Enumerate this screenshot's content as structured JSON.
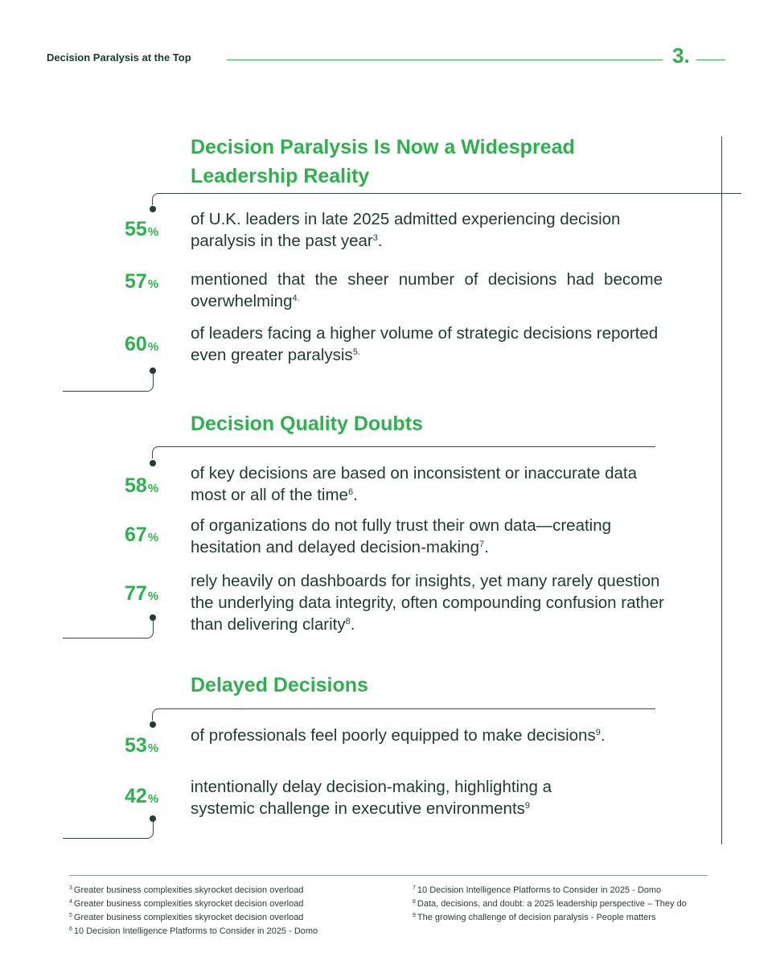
{
  "header": {
    "title": "Decision Paralysis at the Top",
    "page_number": "3."
  },
  "sections": [
    {
      "title": "Decision Paralysis Is Now a Widespread Leadership Reality",
      "stats": [
        {
          "value": "55",
          "unit": "%",
          "text": "of U.K. leaders in late 2025 admitted experiencing decision paralysis in the past year",
          "ref": "3",
          "tail": "."
        },
        {
          "value": "57",
          "unit": "%",
          "text": "mentioned that the sheer number of decisions had become overwhelming",
          "ref": "4.",
          "tail": ""
        },
        {
          "value": "60",
          "unit": "%",
          "text": "of leaders facing a higher volume of strategic decisions reported even greater paralysis",
          "ref": "5.",
          "tail": ""
        }
      ]
    },
    {
      "title": "Decision Quality Doubts",
      "stats": [
        {
          "value": "58",
          "unit": "%",
          "text": "of key decisions are based on inconsistent or inaccurate data most or all of the time",
          "ref": "6",
          "tail": "."
        },
        {
          "value": "67",
          "unit": "%",
          "text": "of organizations do not fully trust their own data—creating hesitation and delayed decision-making",
          "ref": "7",
          "tail": "."
        },
        {
          "value": "77",
          "unit": "%",
          "text": "rely heavily on dashboards for insights, yet many rarely question the underlying data integrity, often compounding confusion rather than delivering clarity",
          "ref": "8",
          "tail": "."
        }
      ]
    },
    {
      "title": "Delayed Decisions",
      "stats": [
        {
          "value": "53",
          "unit": "%",
          "text": "of professionals feel poorly equipped to make decisions",
          "ref": "9",
          "tail": "."
        },
        {
          "value": "42",
          "unit": "%",
          "text": "intentionally delay decision-making, highlighting a systemic challenge in executive environments",
          "ref": "9",
          "tail": ""
        }
      ]
    }
  ],
  "footnotes": {
    "left": [
      {
        "num": "3",
        "text": "Greater business complexities skyrocket decision overload"
      },
      {
        "num": "4",
        "text": "Greater business complexities skyrocket decision overload"
      },
      {
        "num": "5",
        "text": "Greater business complexities skyrocket decision overload"
      },
      {
        "num": "6",
        "text": "10 Decision Intelligence Platforms to Consider in 2025 - Domo"
      }
    ],
    "right": [
      {
        "num": "7",
        "text": "10 Decision Intelligence Platforms to Consider in 2025 - Domo"
      },
      {
        "num": "8",
        "text": "Data, decisions, and doubt: a 2025 leadership perspective – They do"
      },
      {
        "num": "9",
        "text": "The growing challenge of decision paralysis - People matters"
      }
    ]
  },
  "colors": {
    "accent_green": "#2eb14d",
    "text_dark": "#1f3b30",
    "line_dark": "#2f4a3f"
  }
}
